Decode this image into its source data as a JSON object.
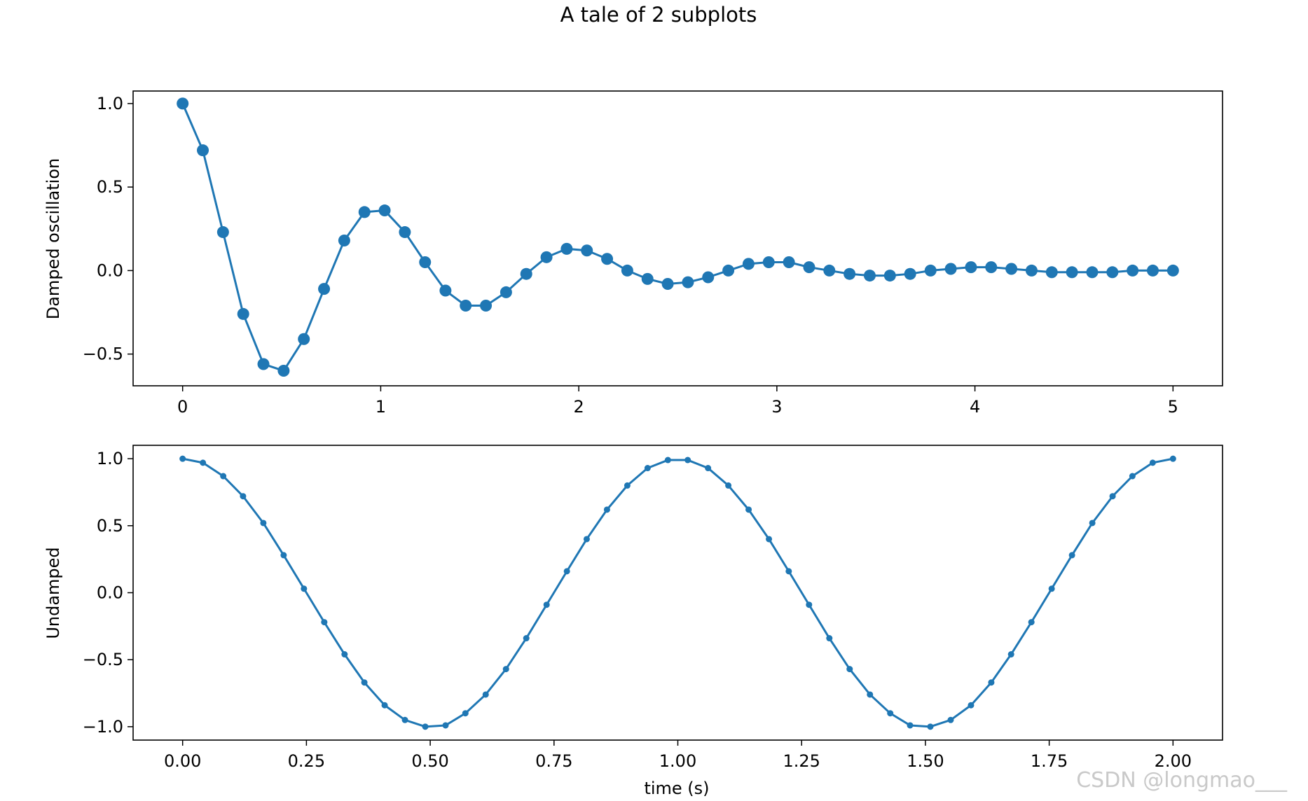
{
  "figure": {
    "suptitle": "A tale of 2 subplots",
    "watermark": "CSDN @longmao___",
    "line_color": "#1f77b4"
  },
  "chart_data": [
    {
      "type": "line",
      "marker": "circle",
      "title": "",
      "xlabel": "",
      "ylabel": "Damped oscillation",
      "xlim": [
        -0.25,
        5.25
      ],
      "ylim": [
        -0.69,
        1.075
      ],
      "xticks": [
        0,
        1,
        2,
        3,
        4,
        5
      ],
      "xtick_labels": [
        "0",
        "1",
        "2",
        "3",
        "4",
        "5"
      ],
      "yticks": [
        -0.5,
        0.0,
        0.5,
        1.0
      ],
      "ytick_labels": [
        "−0.5",
        "0.0",
        "0.5",
        "1.0"
      ],
      "grid": false,
      "series": [
        {
          "x": [
            0.0,
            0.102,
            0.204,
            0.306,
            0.408,
            0.51,
            0.612,
            0.714,
            0.816,
            0.918,
            1.02,
            1.122,
            1.224,
            1.327,
            1.429,
            1.531,
            1.633,
            1.735,
            1.837,
            1.939,
            2.041,
            2.143,
            2.245,
            2.347,
            2.449,
            2.551,
            2.653,
            2.755,
            2.857,
            2.959,
            3.061,
            3.163,
            3.265,
            3.367,
            3.469,
            3.571,
            3.673,
            3.776,
            3.878,
            3.98,
            4.082,
            4.184,
            4.286,
            4.388,
            4.49,
            4.592,
            4.694,
            4.796,
            4.898,
            5.0
          ],
          "y": [
            1.0,
            0.72,
            0.23,
            -0.26,
            -0.56,
            -0.6,
            -0.41,
            -0.11,
            0.18,
            0.35,
            0.36,
            0.23,
            0.05,
            -0.12,
            -0.21,
            -0.21,
            -0.13,
            -0.02,
            0.08,
            0.13,
            0.12,
            0.07,
            0.0,
            -0.05,
            -0.08,
            -0.07,
            -0.04,
            0.0,
            0.04,
            0.05,
            0.05,
            0.02,
            0.0,
            -0.02,
            -0.03,
            -0.03,
            -0.02,
            0.0,
            0.01,
            0.02,
            0.02,
            0.01,
            0.0,
            -0.01,
            -0.01,
            -0.01,
            -0.01,
            0.0,
            0.0,
            0.0
          ]
        }
      ]
    },
    {
      "type": "line",
      "marker": "point",
      "title": "",
      "xlabel": "time (s)",
      "ylabel": "Undamped",
      "xlim": [
        -0.1,
        2.1
      ],
      "ylim": [
        -1.1,
        1.1
      ],
      "xticks": [
        0.0,
        0.25,
        0.5,
        0.75,
        1.0,
        1.25,
        1.5,
        1.75,
        2.0
      ],
      "xtick_labels": [
        "0.00",
        "0.25",
        "0.50",
        "0.75",
        "1.00",
        "1.25",
        "1.50",
        "1.75",
        "2.00"
      ],
      "yticks": [
        -1.0,
        -0.5,
        0.0,
        0.5,
        1.0
      ],
      "ytick_labels": [
        "−1.0",
        "−0.5",
        "0.0",
        "0.5",
        "1.0"
      ],
      "grid": false,
      "series": [
        {
          "x": [
            0.0,
            0.041,
            0.082,
            0.122,
            0.163,
            0.204,
            0.245,
            0.286,
            0.327,
            0.367,
            0.408,
            0.449,
            0.49,
            0.531,
            0.571,
            0.612,
            0.653,
            0.694,
            0.735,
            0.776,
            0.816,
            0.857,
            0.898,
            0.939,
            0.98,
            1.02,
            1.061,
            1.102,
            1.143,
            1.184,
            1.224,
            1.265,
            1.306,
            1.347,
            1.388,
            1.429,
            1.469,
            1.51,
            1.551,
            1.592,
            1.633,
            1.673,
            1.714,
            1.755,
            1.796,
            1.837,
            1.878,
            1.918,
            1.959,
            2.0
          ],
          "y": [
            1.0,
            0.97,
            0.87,
            0.72,
            0.52,
            0.28,
            0.03,
            -0.22,
            -0.46,
            -0.67,
            -0.84,
            -0.95,
            -1.0,
            -0.99,
            -0.9,
            -0.76,
            -0.57,
            -0.34,
            -0.09,
            0.16,
            0.4,
            0.62,
            0.8,
            0.93,
            0.99,
            0.99,
            0.93,
            0.8,
            0.62,
            0.4,
            0.16,
            -0.09,
            -0.34,
            -0.57,
            -0.76,
            -0.9,
            -0.99,
            -1.0,
            -0.95,
            -0.84,
            -0.67,
            -0.46,
            -0.22,
            0.03,
            0.28,
            0.52,
            0.72,
            0.87,
            0.97,
            1.0
          ]
        }
      ]
    }
  ]
}
